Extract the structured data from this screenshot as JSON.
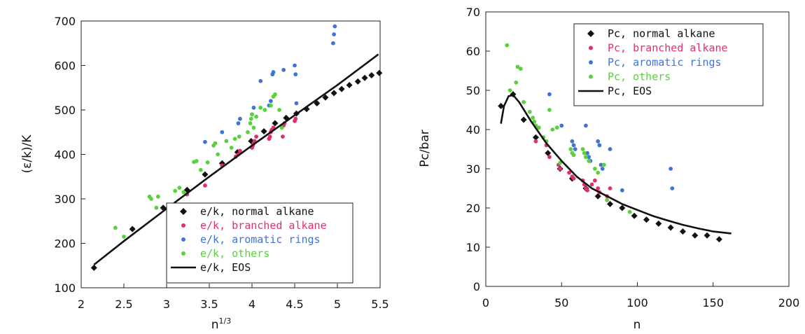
{
  "colors": {
    "normal": "#111111",
    "branched": "#e0306a",
    "aromatic": "#3f74d6",
    "others": "#59d13b",
    "eos": "#111111"
  },
  "chart_data": [
    {
      "type": "scatter",
      "xlabel": "n",
      "xlabel_sup": "1/3",
      "ylabel": "(ε/k)/K",
      "xlim": [
        2,
        5.5
      ],
      "ylim": [
        100,
        700
      ],
      "xticks": [
        "2",
        "2.5",
        "3",
        "3.5",
        "4",
        "4.5",
        "5",
        "5.5"
      ],
      "xtick_values": [
        2,
        2.5,
        3,
        3.5,
        4,
        4.5,
        5,
        5.5
      ],
      "yticks": [
        "100",
        "200",
        "300",
        "400",
        "500",
        "600",
        "700"
      ],
      "ytick_values": [
        100,
        200,
        300,
        400,
        500,
        600,
        700
      ],
      "grid": false,
      "legend_position": "bottom-right",
      "series": [
        {
          "name": "e/k, normal alkane",
          "key": "normal",
          "marker": "diamond",
          "points": [
            [
              2.15,
              145
            ],
            [
              2.6,
              232
            ],
            [
              2.96,
              280
            ],
            [
              3.24,
              320
            ],
            [
              3.45,
              355
            ],
            [
              3.65,
              380
            ],
            [
              3.83,
              405
            ],
            [
              3.99,
              430
            ],
            [
              4.14,
              452
            ],
            [
              4.27,
              470
            ],
            [
              4.4,
              482
            ],
            [
              4.52,
              492
            ],
            [
              4.64,
              502
            ],
            [
              4.76,
              515
            ],
            [
              4.86,
              528
            ],
            [
              4.96,
              538
            ],
            [
              5.05,
              547
            ],
            [
              5.14,
              556
            ],
            [
              5.24,
              564
            ],
            [
              5.32,
              572
            ],
            [
              5.4,
              578
            ],
            [
              5.49,
              583
            ]
          ]
        },
        {
          "name": "e/k, branched alkane",
          "key": "branched",
          "marker": "dot",
          "points": [
            [
              3.24,
              310
            ],
            [
              3.45,
              330
            ],
            [
              3.65,
              375
            ],
            [
              3.81,
              395
            ],
            [
              3.84,
              400
            ],
            [
              3.86,
              408
            ],
            [
              4.0,
              415
            ],
            [
              4.01,
              420
            ],
            [
              4.02,
              425
            ],
            [
              4.03,
              430
            ],
            [
              4.05,
              440
            ],
            [
              4.2,
              435
            ],
            [
              4.21,
              440
            ],
            [
              4.22,
              450
            ],
            [
              4.23,
              455
            ],
            [
              4.25,
              460
            ],
            [
              4.36,
              440
            ],
            [
              4.37,
              465
            ],
            [
              4.38,
              470
            ],
            [
              4.5,
              475
            ],
            [
              4.51,
              480
            ]
          ]
        },
        {
          "name": "e/k, aromatic rings",
          "key": "aromatic",
          "marker": "dot",
          "points": [
            [
              3.45,
              428
            ],
            [
              3.65,
              450
            ],
            [
              3.84,
              470
            ],
            [
              3.86,
              480
            ],
            [
              4.0,
              490
            ],
            [
              4.02,
              505
            ],
            [
              4.1,
              565
            ],
            [
              4.2,
              510
            ],
            [
              4.22,
              520
            ],
            [
              4.24,
              580
            ],
            [
              4.25,
              585
            ],
            [
              4.37,
              590
            ],
            [
              4.5,
              600
            ],
            [
              4.51,
              580
            ],
            [
              4.52,
              515
            ],
            [
              4.95,
              650
            ],
            [
              4.96,
              670
            ],
            [
              4.97,
              688
            ]
          ]
        },
        {
          "name": "e/k, others",
          "key": "others",
          "marker": "dot",
          "points": [
            [
              2.4,
              235
            ],
            [
              2.5,
              215
            ],
            [
              2.8,
              305
            ],
            [
              2.82,
              300
            ],
            [
              2.88,
              280
            ],
            [
              2.9,
              305
            ],
            [
              3.1,
              318
            ],
            [
              3.15,
              325
            ],
            [
              3.2,
              315
            ],
            [
              3.32,
              383
            ],
            [
              3.35,
              385
            ],
            [
              3.4,
              365
            ],
            [
              3.48,
              382
            ],
            [
              3.55,
              420
            ],
            [
              3.57,
              425
            ],
            [
              3.6,
              400
            ],
            [
              3.7,
              430
            ],
            [
              3.76,
              415
            ],
            [
              3.8,
              435
            ],
            [
              3.85,
              440
            ],
            [
              3.95,
              450
            ],
            [
              3.98,
              470
            ],
            [
              3.99,
              480
            ],
            [
              4.0,
              490
            ],
            [
              4.02,
              460
            ],
            [
              4.05,
              485
            ],
            [
              4.1,
              505
            ],
            [
              4.15,
              500
            ],
            [
              4.22,
              510
            ],
            [
              4.25,
              530
            ],
            [
              4.27,
              535
            ],
            [
              4.32,
              500
            ],
            [
              4.35,
              460
            ]
          ]
        },
        {
          "name": "e/k,  EOS",
          "key": "eos",
          "style": "line",
          "points": [
            [
              2.15,
              152
            ],
            [
              2.5,
              205
            ],
            [
              3.0,
              278
            ],
            [
              3.5,
              350
            ],
            [
              4.0,
              420
            ],
            [
              4.5,
              488
            ],
            [
              5.0,
              556
            ],
            [
              5.48,
              625
            ]
          ]
        }
      ]
    },
    {
      "type": "scatter",
      "xlabel": "n",
      "ylabel": "Pc/bar",
      "xlim": [
        0,
        200
      ],
      "ylim": [
        0,
        70
      ],
      "xticks": [
        "0",
        "50",
        "100",
        "150",
        "200"
      ],
      "xtick_values": [
        0,
        50,
        100,
        150,
        200
      ],
      "yticks": [
        "0",
        "10",
        "20",
        "30",
        "40",
        "50",
        "60",
        "70"
      ],
      "ytick_values": [
        0,
        10,
        20,
        30,
        40,
        50,
        60,
        70
      ],
      "grid": false,
      "legend_position": "top-right",
      "series": [
        {
          "name": "Pc,  normal alkane",
          "key": "normal",
          "marker": "diamond",
          "points": [
            [
              10,
              46
            ],
            [
              18,
              49
            ],
            [
              25,
              42.5
            ],
            [
              33,
              38
            ],
            [
              41,
              34
            ],
            [
              49,
              30
            ],
            [
              57,
              27.5
            ],
            [
              66,
              25
            ],
            [
              74,
              23
            ],
            [
              82,
              21
            ],
            [
              90,
              20
            ],
            [
              98,
              18
            ],
            [
              106,
              17
            ],
            [
              114,
              16
            ],
            [
              122,
              15
            ],
            [
              130,
              14
            ],
            [
              138,
              13
            ],
            [
              146,
              13
            ],
            [
              154,
              12
            ]
          ]
        },
        {
          "name": "Pc,  branched alkane",
          "key": "branched",
          "marker": "dot",
          "points": [
            [
              33,
              37
            ],
            [
              40,
              36
            ],
            [
              42,
              33
            ],
            [
              48,
              31
            ],
            [
              49,
              30
            ],
            [
              55,
              29
            ],
            [
              57,
              28
            ],
            [
              58,
              27.5
            ],
            [
              64,
              27
            ],
            [
              65,
              26
            ],
            [
              66,
              25
            ],
            [
              67,
              24.5
            ],
            [
              70,
              26
            ],
            [
              72,
              27
            ],
            [
              74,
              25
            ],
            [
              75,
              24
            ],
            [
              80,
              23
            ],
            [
              82,
              25
            ]
          ]
        },
        {
          "name": "Pc,  aromatic rings",
          "key": "aromatic",
          "marker": "dot",
          "points": [
            [
              42,
              49
            ],
            [
              50,
              41
            ],
            [
              57,
              37
            ],
            [
              58,
              36
            ],
            [
              59,
              35
            ],
            [
              66,
              41
            ],
            [
              67,
              34
            ],
            [
              68,
              33
            ],
            [
              69,
              32
            ],
            [
              74,
              37
            ],
            [
              75,
              36
            ],
            [
              76,
              31
            ],
            [
              77,
              30
            ],
            [
              82,
              35
            ],
            [
              90,
              24.5
            ],
            [
              122,
              30
            ],
            [
              123,
              25
            ]
          ]
        },
        {
          "name": "Pc,  others",
          "key": "others",
          "marker": "dot",
          "points": [
            [
              14,
              61.5
            ],
            [
              16,
              50
            ],
            [
              20,
              52
            ],
            [
              21,
              56
            ],
            [
              23,
              55.5
            ],
            [
              25,
              47
            ],
            [
              29,
              44.5
            ],
            [
              31,
              43
            ],
            [
              32,
              42
            ],
            [
              33,
              41
            ],
            [
              35,
              40.5
            ],
            [
              38,
              38
            ],
            [
              40,
              37
            ],
            [
              42,
              45
            ],
            [
              44,
              40
            ],
            [
              47,
              40.5
            ],
            [
              49,
              31.5
            ],
            [
              56,
              35
            ],
            [
              57,
              34
            ],
            [
              58,
              33.5
            ],
            [
              64,
              35
            ],
            [
              65,
              34
            ],
            [
              66,
              33
            ],
            [
              68,
              32
            ],
            [
              72,
              30
            ],
            [
              74,
              29
            ],
            [
              78,
              31
            ],
            [
              80,
              22
            ],
            [
              95,
              19
            ]
          ]
        },
        {
          "name": "Pc,  EOS",
          "key": "eos",
          "style": "line",
          "points": [
            [
              10,
              41.5
            ],
            [
              12,
              46
            ],
            [
              15,
              48.5
            ],
            [
              18,
              48.8
            ],
            [
              22,
              47
            ],
            [
              30,
              42
            ],
            [
              40,
              36.5
            ],
            [
              50,
              32
            ],
            [
              60,
              28
            ],
            [
              70,
              25
            ],
            [
              80,
              23
            ],
            [
              90,
              21
            ],
            [
              100,
              19.5
            ],
            [
              110,
              18
            ],
            [
              120,
              16.8
            ],
            [
              130,
              15.7
            ],
            [
              140,
              14.8
            ],
            [
              150,
              14
            ],
            [
              162,
              13.5
            ]
          ]
        }
      ]
    }
  ]
}
